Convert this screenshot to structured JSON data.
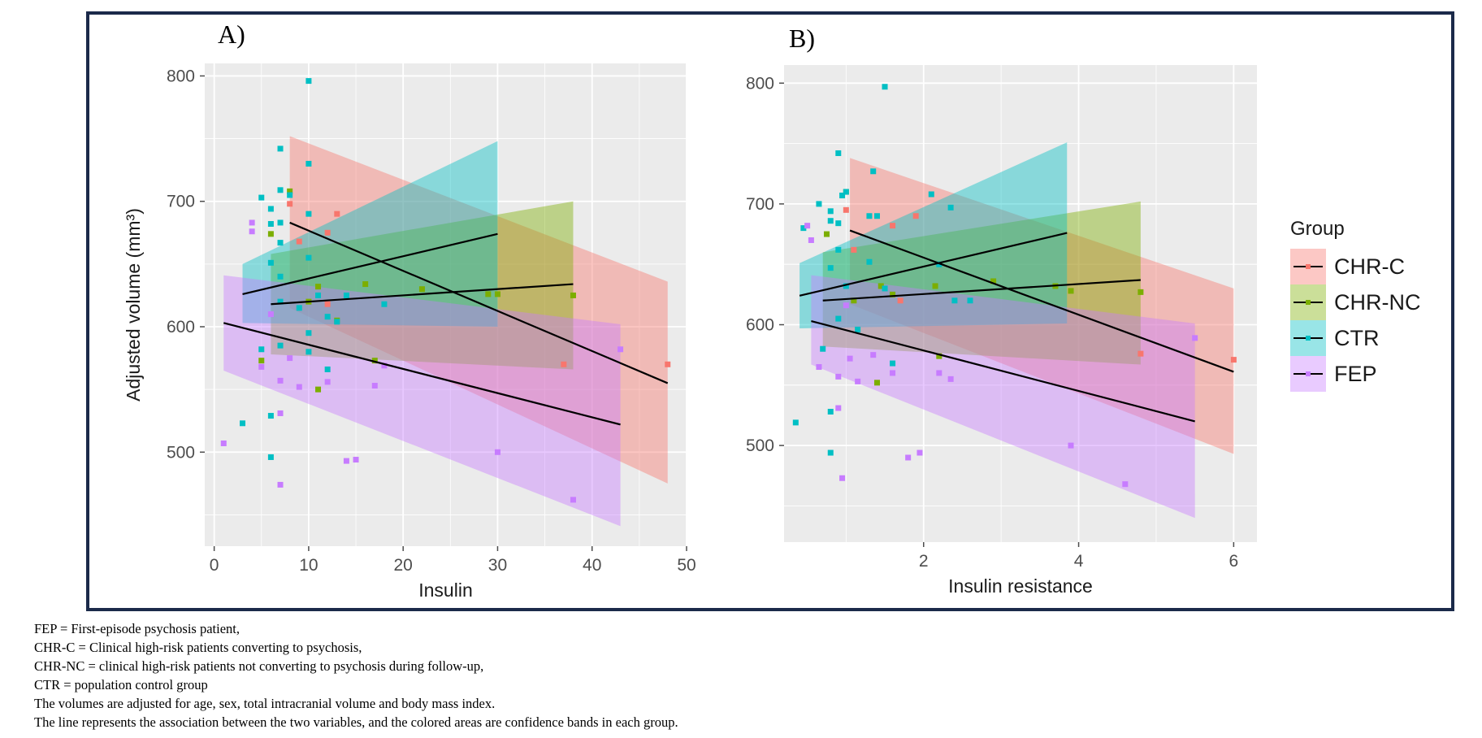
{
  "figure": {
    "legend_title": "Group",
    "groups": [
      {
        "key": "CHR-C",
        "label": "CHR-C",
        "color": "#F8766D"
      },
      {
        "key": "CHR-NC",
        "label": "CHR-NC",
        "color": "#7CAE00"
      },
      {
        "key": "CTR",
        "label": "CTR",
        "color": "#00BFC4"
      },
      {
        "key": "FEP",
        "label": "FEP",
        "color": "#C77CFF"
      }
    ],
    "caption": [
      "FEP = First-episode psychosis patient,",
      "CHR-C = Clinical high-risk patients converting to psychosis,",
      "CHR-NC = clinical high-risk patients not converting to psychosis during follow-up,",
      "CTR = population control group",
      "The volumes are adjusted for age, sex, total intracranial volume and body mass index.",
      "The line represents the association between the two variables, and the colored areas are confidence bands in each group."
    ]
  },
  "chart_data": [
    {
      "panel": "A)",
      "type": "scatter",
      "xlabel": "Insulin",
      "ylabel": "Adjusted volume (mm³)",
      "xlim": [
        -1,
        50
      ],
      "ylim": [
        425,
        810
      ],
      "xticks": [
        0,
        10,
        20,
        30,
        40,
        50
      ],
      "yticks": [
        500,
        600,
        700,
        800
      ],
      "xticks_label": [
        "0",
        "10",
        "20",
        "30",
        "40",
        "50"
      ],
      "yticks_label": [
        "500",
        "600",
        "700",
        "800"
      ],
      "series": [
        {
          "name": "CHR-C",
          "points": [
            [
              8,
              698
            ],
            [
              9,
              668
            ],
            [
              12,
              675
            ],
            [
              12,
              618
            ],
            [
              13,
              690
            ],
            [
              37,
              570
            ],
            [
              48,
              570
            ]
          ],
          "line": [
            [
              8,
              683
            ],
            [
              48,
              555
            ]
          ],
          "band": {
            "x": [
              8,
              48
            ],
            "upper": [
              752,
              636
            ],
            "lower": [
              615,
              475
            ]
          }
        },
        {
          "name": "CHR-NC",
          "points": [
            [
              5,
              573
            ],
            [
              6,
              674
            ],
            [
              8,
              708
            ],
            [
              10,
              620
            ],
            [
              11,
              550
            ],
            [
              11,
              632
            ],
            [
              13,
              605
            ],
            [
              16,
              634
            ],
            [
              17,
              573
            ],
            [
              22,
              630
            ],
            [
              29,
              626
            ],
            [
              30,
              626
            ],
            [
              38,
              625
            ]
          ],
          "line": [
            [
              6,
              618
            ],
            [
              38,
              634
            ]
          ],
          "band": {
            "x": [
              6,
              38
            ],
            "upper": [
              658,
              700
            ],
            "lower": [
              578,
              566
            ]
          }
        },
        {
          "name": "CTR",
          "points": [
            [
              3,
              523
            ],
            [
              5,
              703
            ],
            [
              5,
              582
            ],
            [
              6,
              694
            ],
            [
              6,
              682
            ],
            [
              6,
              651
            ],
            [
              6,
              529
            ],
            [
              6,
              496
            ],
            [
              7,
              742
            ],
            [
              7,
              709
            ],
            [
              7,
              683
            ],
            [
              7,
              667
            ],
            [
              7,
              640
            ],
            [
              7,
              620
            ],
            [
              7,
              585
            ],
            [
              8,
              705
            ],
            [
              9,
              615
            ],
            [
              10,
              796
            ],
            [
              10,
              730
            ],
            [
              10,
              690
            ],
            [
              10,
              655
            ],
            [
              10,
              595
            ],
            [
              10,
              580
            ],
            [
              11,
              625
            ],
            [
              12,
              608
            ],
            [
              12,
              566
            ],
            [
              13,
              604
            ],
            [
              14,
              625
            ],
            [
              18,
              618
            ]
          ],
          "line": [
            [
              3,
              626
            ],
            [
              30,
              674
            ]
          ],
          "band": {
            "x": [
              3,
              30
            ],
            "upper": [
              650,
              748
            ],
            "lower": [
              603,
              600
            ]
          }
        },
        {
          "name": "FEP",
          "points": [
            [
              1,
              507
            ],
            [
              4,
              683
            ],
            [
              4,
              676
            ],
            [
              5,
              568
            ],
            [
              6,
              610
            ],
            [
              7,
              557
            ],
            [
              7,
              531
            ],
            [
              7,
              474
            ],
            [
              8,
              575
            ],
            [
              9,
              552
            ],
            [
              12,
              556
            ],
            [
              14,
              493
            ],
            [
              15,
              494
            ],
            [
              17,
              553
            ],
            [
              18,
              569
            ],
            [
              30,
              500
            ],
            [
              38,
              462
            ],
            [
              43,
              582
            ]
          ],
          "line": [
            [
              1,
              603
            ],
            [
              43,
              522
            ]
          ],
          "band": {
            "x": [
              1,
              43
            ],
            "upper": [
              641,
              602
            ],
            "lower": [
              565,
              441
            ]
          }
        }
      ]
    },
    {
      "panel": "B)",
      "type": "scatter",
      "xlabel": "Insulin resistance",
      "ylabel": "",
      "xlim": [
        0.2,
        6.3
      ],
      "ylim": [
        420,
        815
      ],
      "xticks": [
        2,
        4,
        6
      ],
      "yticks": [
        500,
        600,
        700,
        800
      ],
      "xticks_label": [
        "2",
        "4",
        "6"
      ],
      "yticks_label": [
        "500",
        "600",
        "700",
        "800"
      ],
      "series": [
        {
          "name": "CHR-C",
          "points": [
            [
              1.1,
              662
            ],
            [
              1.0,
              695
            ],
            [
              1.6,
              682
            ],
            [
              1.7,
              620
            ],
            [
              1.9,
              690
            ],
            [
              4.8,
              576
            ],
            [
              6.0,
              571
            ]
          ],
          "line": [
            [
              1.05,
              678
            ],
            [
              6.0,
              561
            ]
          ],
          "band": {
            "x": [
              1.05,
              6.0
            ],
            "upper": [
              738,
              630
            ],
            "lower": [
              617,
              493
            ]
          }
        },
        {
          "name": "CHR-NC",
          "points": [
            [
              0.75,
              675
            ],
            [
              1.0,
              710
            ],
            [
              1.1,
              620
            ],
            [
              1.4,
              552
            ],
            [
              1.45,
              632
            ],
            [
              1.6,
              625
            ],
            [
              2.15,
              632
            ],
            [
              2.2,
              574
            ],
            [
              2.9,
              636
            ],
            [
              3.7,
              632
            ],
            [
              3.9,
              628
            ],
            [
              4.8,
              627
            ]
          ],
          "line": [
            [
              0.7,
              620
            ],
            [
              4.8,
              637
            ]
          ],
          "band": {
            "x": [
              0.7,
              4.8
            ],
            "upper": [
              660,
              702
            ],
            "lower": [
              582,
              567
            ]
          }
        },
        {
          "name": "CTR",
          "points": [
            [
              0.35,
              519
            ],
            [
              0.45,
              680
            ],
            [
              0.65,
              700
            ],
            [
              0.7,
              580
            ],
            [
              0.8,
              694
            ],
            [
              0.8,
              686
            ],
            [
              0.8,
              647
            ],
            [
              0.8,
              528
            ],
            [
              0.8,
              494
            ],
            [
              0.9,
              742
            ],
            [
              0.95,
              707
            ],
            [
              0.9,
              684
            ],
            [
              0.9,
              662
            ],
            [
              0.9,
              605
            ],
            [
              1.0,
              710
            ],
            [
              1.0,
              632
            ],
            [
              1.15,
              596
            ],
            [
              1.35,
              727
            ],
            [
              1.4,
              690
            ],
            [
              1.3,
              690
            ],
            [
              1.3,
              652
            ],
            [
              1.5,
              797
            ],
            [
              1.5,
              630
            ],
            [
              1.6,
              568
            ],
            [
              2.1,
              708
            ],
            [
              2.2,
              650
            ],
            [
              2.35,
              697
            ],
            [
              2.4,
              620
            ],
            [
              2.6,
              620
            ]
          ],
          "line": [
            [
              0.4,
              624
            ],
            [
              3.85,
              676
            ]
          ],
          "band": {
            "x": [
              0.4,
              3.85
            ],
            "upper": [
              651,
              751
            ],
            "lower": [
              597,
              601
            ]
          }
        },
        {
          "name": "FEP",
          "points": [
            [
              0.5,
              682
            ],
            [
              0.55,
              670
            ],
            [
              0.65,
              565
            ],
            [
              0.9,
              557
            ],
            [
              0.9,
              531
            ],
            [
              0.95,
              473
            ],
            [
              1.0,
              616
            ],
            [
              1.05,
              572
            ],
            [
              1.15,
              553
            ],
            [
              1.35,
              575
            ],
            [
              1.6,
              560
            ],
            [
              1.8,
              490
            ],
            [
              1.95,
              494
            ],
            [
              2.2,
              560
            ],
            [
              2.35,
              555
            ],
            [
              3.9,
              500
            ],
            [
              4.6,
              468
            ],
            [
              5.5,
              589
            ]
          ],
          "line": [
            [
              0.55,
              603
            ],
            [
              5.5,
              520
            ]
          ],
          "band": {
            "x": [
              0.55,
              5.5
            ],
            "upper": [
              641,
              601
            ],
            "lower": [
              567,
              440
            ]
          }
        }
      ]
    }
  ]
}
